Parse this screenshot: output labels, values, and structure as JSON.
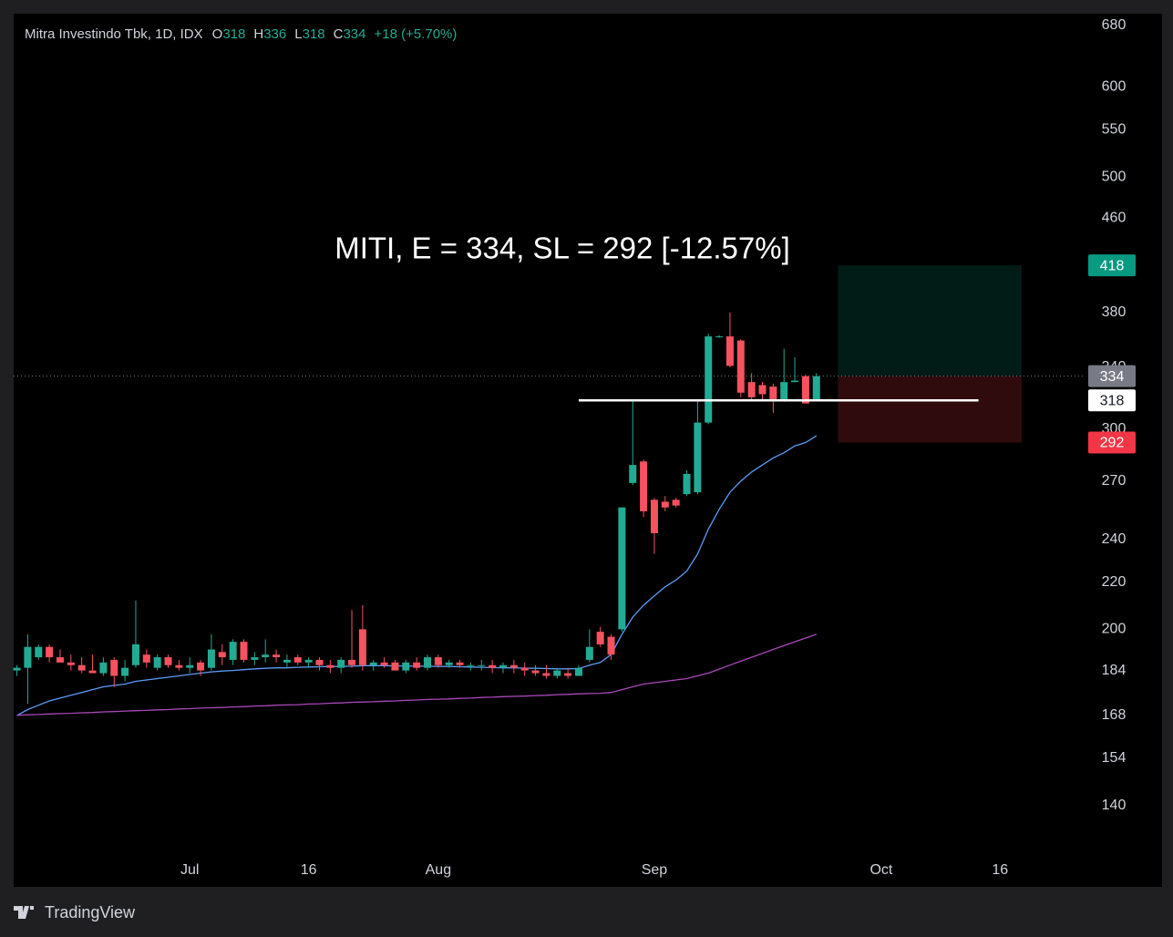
{
  "chart_data": {
    "type": "candlestick",
    "header": {
      "symbol": "Mitra Investindo Tbk, 1D, IDX",
      "fields": [
        {
          "label": "O",
          "value": 318
        },
        {
          "label": "H",
          "value": 336
        },
        {
          "label": "L",
          "value": 318
        },
        {
          "label": "C",
          "value": 334
        }
      ],
      "change": "+18 (+5.70%)"
    },
    "annotation": "MITI, E = 334, SL = 292 [-12.57%]",
    "brand": "TradingView",
    "log_scale": true,
    "ylim": [
      125,
      696
    ],
    "yticks": [
      680,
      600,
      550,
      500,
      460,
      380,
      340,
      300,
      270,
      240,
      220,
      200,
      184,
      168,
      154,
      140
    ],
    "xlim": [
      -0.3,
      98.4
    ],
    "xticks": [
      {
        "value": 16,
        "label": "Jul"
      },
      {
        "value": 27,
        "label": "16"
      },
      {
        "value": 39,
        "label": "Aug"
      },
      {
        "value": 59,
        "label": "Sep"
      },
      {
        "value": 80,
        "label": "Oct"
      },
      {
        "value": 91,
        "label": "16"
      }
    ],
    "up_color": "#22ab94",
    "down_color": "#f7525f",
    "ohlc": {
      "open": [
        184,
        185,
        189,
        193,
        189,
        187,
        186,
        184,
        183,
        188,
        182,
        186,
        190,
        185,
        189,
        186,
        185,
        187,
        185,
        191,
        188,
        195,
        188,
        189,
        190,
        187,
        189,
        187,
        188,
        186,
        185,
        188,
        200,
        186,
        187,
        187,
        184,
        187,
        185,
        189,
        186,
        187,
        186,
        186,
        186,
        185,
        186,
        185,
        184,
        183,
        182,
        183,
        182,
        188,
        199,
        197,
        200,
        269,
        281,
        260,
        259,
        260,
        263,
        264,
        304,
        362,
        362,
        359,
        330,
        328,
        327,
        318,
        330,
        334,
        318
      ],
      "high": [
        186,
        198,
        194,
        194,
        192,
        190,
        189,
        190,
        189,
        189,
        188,
        212,
        192,
        190,
        190,
        188,
        189,
        188,
        198,
        194,
        196,
        196,
        191,
        196,
        192,
        190,
        190,
        189,
        189,
        188,
        189,
        208,
        210,
        188,
        189,
        188,
        188,
        189,
        190,
        190,
        188,
        188,
        187,
        188,
        188,
        187,
        188,
        187,
        186,
        186,
        185,
        185,
        186,
        200,
        201,
        198,
        256,
        318,
        282,
        261,
        262,
        261,
        276,
        318,
        364,
        363,
        380,
        360,
        336,
        330,
        329,
        353,
        347,
        335,
        336
      ],
      "low": [
        182,
        172,
        188,
        187,
        187,
        184,
        183,
        183,
        182,
        178,
        180,
        185,
        185,
        184,
        185,
        184,
        183,
        182,
        184,
        186,
        186,
        187,
        186,
        187,
        187,
        185,
        186,
        185,
        184,
        183,
        183,
        185,
        184,
        184,
        185,
        184,
        183,
        184,
        184,
        185,
        185,
        185,
        184,
        184,
        183,
        183,
        183,
        182,
        182,
        181,
        181,
        181,
        182,
        187,
        193,
        188,
        199,
        268,
        251,
        233,
        254,
        256,
        262,
        263,
        303,
        361,
        340,
        320,
        318,
        318,
        310,
        317,
        330,
        316,
        318
      ],
      "close": [
        185,
        193,
        193,
        189,
        187,
        186,
        184,
        183,
        187,
        182,
        185,
        194,
        187,
        189,
        186,
        185,
        186,
        184,
        192,
        189,
        195,
        188,
        189,
        190,
        189,
        188,
        187,
        188,
        186,
        185,
        188,
        186,
        186,
        187,
        186,
        184,
        187,
        185,
        189,
        186,
        187,
        186,
        186,
        186,
        185,
        186,
        185,
        184,
        183,
        182,
        184,
        182,
        185,
        193,
        194,
        190,
        256,
        279,
        254,
        243,
        256,
        257,
        274,
        304,
        362,
        362,
        341,
        323,
        320,
        322,
        318,
        330,
        331,
        316,
        334
      ]
    },
    "lines": [
      {
        "color": "#5b9cf6",
        "values": [
          168,
          170,
          171.5,
          173,
          174,
          175,
          176,
          177,
          178,
          178.5,
          179,
          180,
          180.5,
          181,
          181.5,
          182,
          182.5,
          183,
          183.5,
          183.8,
          184,
          184.3,
          184.6,
          184.8,
          185,
          185,
          185.2,
          185.3,
          185.4,
          185.5,
          185.5,
          185.6,
          185.8,
          185.8,
          185.8,
          185.7,
          185.7,
          185.6,
          185.6,
          185.5,
          185.5,
          185.4,
          185.3,
          185.2,
          185.1,
          185,
          185,
          184.9,
          184.8,
          184.7,
          184.6,
          184.6,
          184.7,
          186,
          187,
          190,
          198,
          205,
          210,
          214,
          218,
          221,
          225,
          233,
          245,
          255,
          264,
          270,
          275,
          279,
          283,
          286,
          290,
          292,
          296
        ]
      },
      {
        "color": "#ab47bc",
        "values": [
          168,
          168.2,
          168.3,
          168.5,
          168.6,
          168.7,
          168.9,
          169,
          169.2,
          169.3,
          169.5,
          169.6,
          169.7,
          169.9,
          170,
          170.2,
          170.3,
          170.5,
          170.6,
          170.7,
          170.9,
          171,
          171.2,
          171.3,
          171.5,
          171.6,
          171.7,
          171.9,
          172,
          172.2,
          172.3,
          172.5,
          172.6,
          172.7,
          172.9,
          173,
          173.2,
          173.3,
          173.5,
          173.6,
          173.7,
          173.9,
          174,
          174.2,
          174.3,
          174.5,
          174.6,
          174.7,
          174.9,
          175,
          175.2,
          175.3,
          175.5,
          175.6,
          175.7,
          176,
          177,
          178,
          179,
          179.5,
          180,
          180.5,
          181,
          182,
          183,
          184.5,
          186,
          187.5,
          189,
          190.5,
          192,
          193.5,
          195,
          196.5,
          198
        ]
      }
    ],
    "position": {
      "entry": 334,
      "target": 418,
      "stop": 292,
      "start": 76,
      "end": 93,
      "target_color": "#089981",
      "stop_color": "#f23645"
    },
    "level": {
      "value": 318,
      "start": 52,
      "end": 89,
      "color": "#ffffff"
    }
  }
}
